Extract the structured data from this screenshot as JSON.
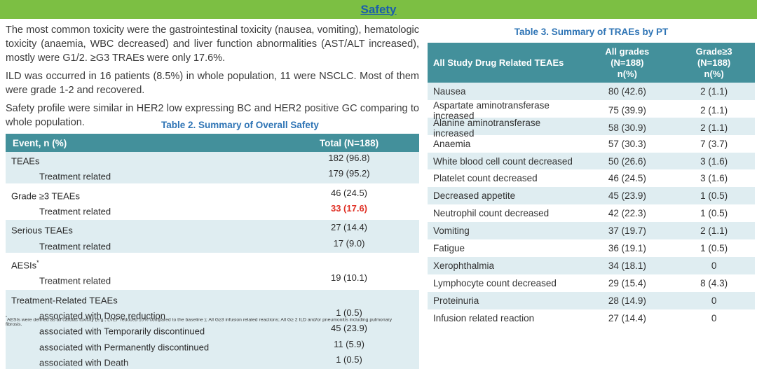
{
  "colors": {
    "header_green": "#7CBF43",
    "title_blue": "#1B5EAC",
    "table_title_blue": "#2E74B5",
    "table_header_teal": "#43909B",
    "row_tint": "#DFEDF1",
    "highlight_red": "#E03126"
  },
  "header": {
    "title": "Safety"
  },
  "left": {
    "paragraphs": [
      "The most common toxicity were the gastrointestinal toxicity (nausea, vomiting), hematologic toxicity (anaemia, WBC decreased) and liver function abnormalities (AST/ALT increased), mostly were G1/2.  ≥G3 TRAEs were only 17.6%.",
      "ILD was occurred in 16 patients (8.5%) in whole population, 11 were NSCLC. Most of them were grade 1-2 and recovered.",
      "Safety profile were similar in HER2 low expressing BC and HER2 positive GC comparing to whole population."
    ],
    "table2": {
      "title": "Table 2. Summary of Overall Safety",
      "col_event": "Event, n (%)",
      "col_total": "Total (N=188)",
      "rows": [
        {
          "label": "TEAEs",
          "value": "182 (96.8)",
          "tint": true
        },
        {
          "label": "Treatment related",
          "value": "179 (95.2)",
          "tint": true,
          "indent": true
        },
        {
          "label": "Grade ≥3 TEAEs",
          "value": "46 (24.5)",
          "gs": true
        },
        {
          "label": "Treatment related",
          "value": "33 (17.6)",
          "indent": true,
          "red": true
        },
        {
          "label": "Serious TEAEs",
          "value": "27 (14.4)",
          "tint": true,
          "gs": true
        },
        {
          "label": "Treatment related",
          "value": "17 (9.0)",
          "tint": true,
          "indent": true
        },
        {
          "label": "AESIs",
          "sup": "*",
          "value": "",
          "gs": true
        },
        {
          "label": "Treatment related",
          "value": "19 (10.1)",
          "indent": true
        },
        {
          "label": "Treatment-Related TEAEs",
          "value": "",
          "tint": true,
          "gs": true
        },
        {
          "label": "associated with Dose reduction",
          "value": "1 (0.5)",
          "tint": true,
          "indent": true
        },
        {
          "label": "associated with Temporarily discontinued",
          "value": "45 (23.9)",
          "tint": true,
          "indent": true
        },
        {
          "label": "associated with Permanently discontinued",
          "value": "11 (5.9)",
          "tint": true,
          "indent": true
        },
        {
          "label": "associated with Death",
          "value": "1 (0.5)",
          "tint": true,
          "indent": true
        }
      ],
      "footnote_sup": "*",
      "footnote": "AESIs were defined as all cardiac toxicity (e.g., LVEF reduced 10% compared to the baseline ); All G≥3 infusion related reactions; All G≥ 2 ILD and/or pneumonitis including pulmonary fibrosis."
    }
  },
  "right": {
    "table3": {
      "title": "Table 3. Summary of TRAEs by PT",
      "col_name": "All Study Drug Related TEAEs",
      "col_all": "All grades\n(N=188)\nn(%)",
      "col_g3": "Grade≥3\n(N=188)\nn(%)",
      "rows": [
        {
          "name": "Nausea",
          "all": "80 (42.6)",
          "g3": "2 (1.1)"
        },
        {
          "name": "Aspartate aminotransferase increased",
          "all": "75 (39.9)",
          "g3": "2 (1.1)"
        },
        {
          "name": "Alanine aminotransferase increased",
          "all": "58 (30.9)",
          "g3": "2 (1.1)"
        },
        {
          "name": "Anaemia",
          "all": "57 (30.3)",
          "g3": "7 (3.7)"
        },
        {
          "name": "White blood cell count decreased",
          "all": "50 (26.6)",
          "g3": "3 (1.6)"
        },
        {
          "name": "Platelet count decreased",
          "all": "46 (24.5)",
          "g3": "3 (1.6)"
        },
        {
          "name": "Decreased appetite",
          "all": "45 (23.9)",
          "g3": "1 (0.5)"
        },
        {
          "name": "Neutrophil count decreased",
          "all": "42 (22.3)",
          "g3": "1 (0.5)"
        },
        {
          "name": "Vomiting",
          "all": "37 (19.7)",
          "g3": "2 (1.1)"
        },
        {
          "name": "Fatigue",
          "all": "36 (19.1)",
          "g3": "1 (0.5)"
        },
        {
          "name": "Xerophthalmia",
          "all": "34 (18.1)",
          "g3": "0"
        },
        {
          "name": "Lymphocyte count decreased",
          "all": "29 (15.4)",
          "g3": "8 (4.3)"
        },
        {
          "name": "Proteinuria",
          "all": "28 (14.9)",
          "g3": "0"
        },
        {
          "name": "Infusion related reaction",
          "all": "27 (14.4)",
          "g3": "0"
        }
      ]
    }
  }
}
